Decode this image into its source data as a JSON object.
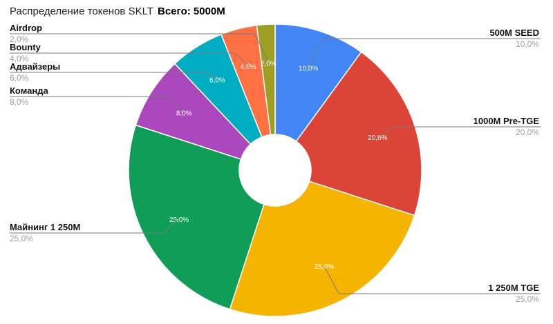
{
  "chart_data": {
    "type": "pie",
    "title": "Распределение токенов SKLT",
    "subtitle": "Всего: 5000M",
    "donut": true,
    "slices": [
      {
        "name": "SEED",
        "prefix": "500M",
        "value": 10.0,
        "label": "10,0%",
        "color": "#4285f4"
      },
      {
        "name": "Pre-TGE",
        "prefix": "1000M",
        "value": 20.0,
        "label": "20,0%",
        "color": "#db4437"
      },
      {
        "name": "TGE",
        "prefix": "1 250M",
        "value": 25.0,
        "label": "25,0%",
        "color": "#f4b400"
      },
      {
        "name": "Майнинг",
        "suffix": "1 250M",
        "value": 25.0,
        "label": "25,0%",
        "color": "#0f9d58"
      },
      {
        "name": "Команда",
        "value": 8.0,
        "label": "8,0%",
        "color": "#ab47bc"
      },
      {
        "name": "Адвайзеры",
        "value": 6.0,
        "label": "6,0%",
        "color": "#00acc1"
      },
      {
        "name": "Bounty",
        "value": 4.0,
        "label": "4,0%",
        "color": "#ff7043"
      },
      {
        "name": "Airdrop",
        "value": 2.0,
        "label": "2,0%",
        "color": "#9e9d24"
      }
    ]
  }
}
